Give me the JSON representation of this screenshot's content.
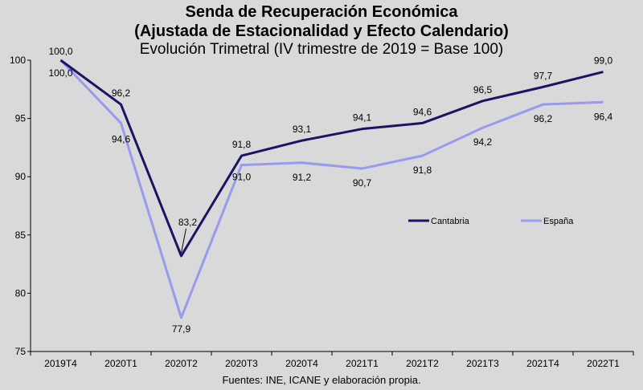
{
  "chart_data": {
    "type": "line",
    "title": "Senda de Recuperación Económica",
    "subtitle": "(Ajustada de Estacionalidad y Efecto Calendario)",
    "subtitle2": "Evolución Trimetral  (IV trimestre de 2019 = Base 100)",
    "source": "Fuentes: INE, ICANE y elaboración propia.",
    "categories": [
      "2019T4",
      "2020T1",
      "2020T2",
      "2020T3",
      "2020T4",
      "2021T1",
      "2021T2",
      "2021T3",
      "2021T4",
      "2022T1"
    ],
    "ylim": [
      75,
      100
    ],
    "yticks": [
      75,
      80,
      85,
      90,
      95,
      100
    ],
    "ytick_labels": [
      "75",
      "80",
      "85",
      "90",
      "95",
      "100"
    ],
    "grid": false,
    "legend_position": "right-middle",
    "series": [
      {
        "name": "Cantabria",
        "color": "#1b1464",
        "values": [
          100.0,
          96.2,
          83.2,
          91.8,
          93.1,
          94.1,
          94.6,
          96.5,
          97.7,
          99.0
        ],
        "labels": [
          "100,0",
          "96,2",
          "83,2",
          "91,8",
          "93,1",
          "94,1",
          "94,6",
          "96,5",
          "97,7",
          "99,0"
        ]
      },
      {
        "name": "España",
        "color": "#9999ee",
        "values": [
          100.0,
          94.6,
          77.9,
          91.0,
          91.2,
          90.7,
          91.8,
          94.2,
          96.2,
          96.4
        ],
        "labels": [
          "100,0",
          "94,6",
          "77,9",
          "91,0",
          "91,2",
          "90,7",
          "91,8",
          "94,2",
          "96,2",
          "96,4"
        ]
      }
    ]
  }
}
